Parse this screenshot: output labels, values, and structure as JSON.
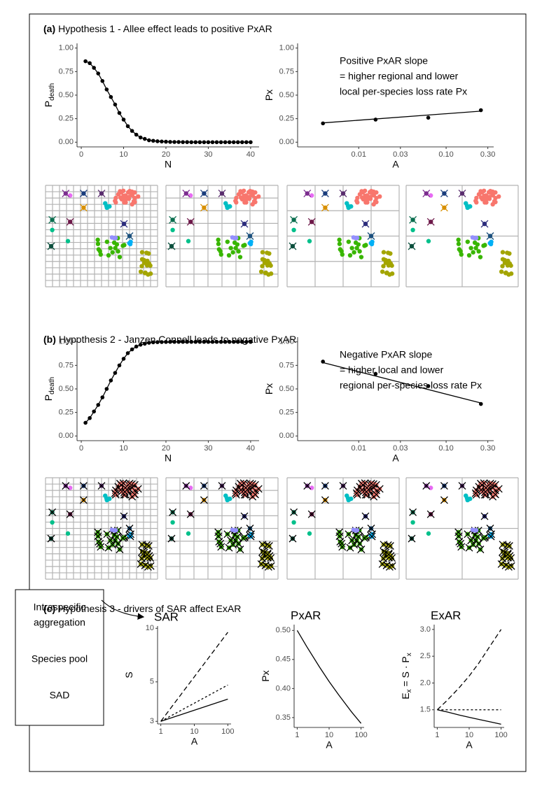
{
  "panel_titles": [
    {
      "label": "(a)",
      "text": "Hypothesis 1 - Allee effect leads to positive PxAR"
    },
    {
      "label": "(b)",
      "text": "Hypothesis 2 - Janzen Connell leads to negative PxAR"
    },
    {
      "label": "(c)",
      "text": "Hypothesis 3 - drivers of SAR affect ExAR"
    }
  ],
  "box_labels": [
    "Intraspecific",
    "aggregation",
    "Species pool",
    "SAD"
  ],
  "chart_data": [
    {
      "type": "line",
      "markers": true,
      "x_label": "N",
      "y_label": [
        {
          "text": "P"
        },
        {
          "text": "death",
          "sub": true
        }
      ],
      "x": [
        1,
        2,
        3,
        4,
        5,
        6,
        7,
        8,
        9,
        10,
        11,
        12,
        13,
        14,
        15,
        16,
        17,
        18,
        19,
        20,
        21,
        22,
        23,
        24,
        25,
        26,
        27,
        28,
        29,
        30,
        31,
        32,
        33,
        34,
        35,
        36,
        37,
        38,
        39,
        40
      ],
      "series": [
        {
          "color": "#000000",
          "values": [
            0.86,
            0.84,
            0.79,
            0.73,
            0.65,
            0.56,
            0.48,
            0.4,
            0.31,
            0.24,
            0.17,
            0.12,
            0.08,
            0.05,
            0.035,
            0.02,
            0.015,
            0.01,
            0.007,
            0.005,
            0.003,
            0.002,
            0.002,
            0.001,
            0.001,
            0,
            0,
            0,
            0,
            0,
            0,
            0,
            0,
            0,
            0,
            0,
            0,
            0,
            0,
            0
          ]
        }
      ],
      "xlim": [
        -1,
        42
      ],
      "xticks": [
        0,
        10,
        20,
        30,
        40
      ],
      "ylim": [
        -0.05,
        1.05
      ],
      "yticks": [
        {
          "value": 0,
          "label": "0.00"
        },
        {
          "value": 0.25,
          "label": "0.25"
        },
        {
          "value": 0.5,
          "label": "0.50"
        },
        {
          "value": 0.75,
          "label": "0.75"
        },
        {
          "value": 1,
          "label": "1.00"
        }
      ]
    },
    {
      "type": "scatter",
      "x_label": "A",
      "y_label": [
        {
          "text": "Px"
        }
      ],
      "x_log": true,
      "x": [
        0.0039,
        0.0156,
        0.0625,
        0.25
      ],
      "series": [
        {
          "color": "#000000",
          "values": [
            0.2,
            0.24,
            0.26,
            0.34
          ]
        }
      ],
      "trend": {
        "x": [
          0.0039,
          0.25
        ],
        "values": [
          0.205,
          0.33
        ]
      },
      "annotation": [
        "Positive PxAR slope",
        "= higher regional and lower",
        "local per-species loss rate Px"
      ],
      "xlim": [
        0.002,
        0.35
      ],
      "xticks": [
        0.01,
        0.03,
        {
          "value": 0.1,
          "label": "0.10"
        },
        {
          "value": 0.3,
          "label": "0.30"
        }
      ],
      "ylim": [
        -0.05,
        1.05
      ],
      "yticks": [
        {
          "value": 0,
          "label": "0.00"
        },
        {
          "value": 0.25,
          "label": "0.25"
        },
        {
          "value": 0.5,
          "label": "0.50"
        },
        {
          "value": 0.75,
          "label": "0.75"
        },
        {
          "value": 1,
          "label": "1.00"
        }
      ]
    },
    {
      "type": "line",
      "markers": true,
      "x_label": "N",
      "y_label": [
        {
          "text": "P"
        },
        {
          "text": "death",
          "sub": true
        }
      ],
      "x": [
        1,
        2,
        3,
        4,
        5,
        6,
        7,
        8,
        9,
        10,
        11,
        12,
        13,
        14,
        15,
        16,
        17,
        18,
        19,
        20,
        21,
        22,
        23,
        24,
        25,
        26,
        27,
        28,
        29,
        30,
        31,
        32,
        33,
        34,
        35,
        36,
        37,
        38,
        39,
        40
      ],
      "series": [
        {
          "color": "#000000",
          "values": [
            0.14,
            0.19,
            0.26,
            0.33,
            0.41,
            0.5,
            0.59,
            0.67,
            0.75,
            0.82,
            0.88,
            0.92,
            0.95,
            0.97,
            0.98,
            0.99,
            0.995,
            0.997,
            0.998,
            0.999,
            1,
            1,
            1,
            1,
            1,
            1,
            1,
            1,
            1,
            1,
            1,
            1,
            1,
            1,
            1,
            1,
            1,
            1,
            1,
            1
          ]
        }
      ],
      "xlim": [
        -1,
        42
      ],
      "xticks": [
        0,
        10,
        20,
        30,
        40
      ],
      "ylim": [
        -0.05,
        1.05
      ],
      "yticks": [
        {
          "value": 0,
          "label": "0.00"
        },
        {
          "value": 0.25,
          "label": "0.25"
        },
        {
          "value": 0.5,
          "label": "0.50"
        },
        {
          "value": 0.75,
          "label": "0.75"
        },
        {
          "value": 1,
          "label": "1.00"
        }
      ]
    },
    {
      "type": "scatter",
      "x_label": "A",
      "y_label": [
        {
          "text": "Px"
        }
      ],
      "x_log": true,
      "x": [
        0.0039,
        0.0156,
        0.0625,
        0.25
      ],
      "series": [
        {
          "color": "#000000",
          "values": [
            0.79,
            0.66,
            0.53,
            0.34
          ]
        }
      ],
      "trend": {
        "x": [
          0.0039,
          0.25
        ],
        "values": [
          0.78,
          0.35
        ]
      },
      "annotation": [
        "Negative PxAR slope",
        "= higher local and lower",
        "regional per-species loss rate Px"
      ],
      "xlim": [
        0.002,
        0.35
      ],
      "xticks": [
        0.01,
        0.03,
        {
          "value": 0.1,
          "label": "0.10"
        },
        {
          "value": 0.3,
          "label": "0.30"
        }
      ],
      "ylim": [
        -0.05,
        1.05
      ],
      "yticks": [
        {
          "value": 0,
          "label": "0.00"
        },
        {
          "value": 0.25,
          "label": "0.25"
        },
        {
          "value": 0.5,
          "label": "0.50"
        },
        {
          "value": 0.75,
          "label": "0.75"
        },
        {
          "value": 1,
          "label": "1.00"
        }
      ]
    },
    {
      "type": "line",
      "title": "SAR",
      "x_label": "A",
      "y_label": [
        {
          "text": "S"
        }
      ],
      "x_log": true,
      "y_log": true,
      "x": [
        1,
        100
      ],
      "series": [
        {
          "color": "#000000",
          "dash": "solid",
          "values": [
            3,
            4
          ]
        },
        {
          "color": "#000000",
          "dash": "dotted",
          "values": [
            3,
            4.8
          ]
        },
        {
          "color": "#000000",
          "dash": "dashed",
          "values": [
            3,
            9.5
          ]
        }
      ],
      "xlim": [
        0.8,
        125
      ],
      "xticks": [
        1,
        10,
        100
      ],
      "ylim": [
        2.9,
        10.3
      ],
      "yticks": [
        3,
        5,
        10
      ]
    },
    {
      "type": "line",
      "title": "PxAR",
      "x_label": "A",
      "y_label": [
        {
          "text": "Px"
        }
      ],
      "x_log": true,
      "x": [
        1,
        2,
        5,
        10,
        20,
        50,
        100
      ],
      "series": [
        {
          "color": "#000000",
          "dash": "solid",
          "values": [
            0.5,
            0.472,
            0.437,
            0.412,
            0.389,
            0.36,
            0.34
          ]
        }
      ],
      "xlim": [
        0.8,
        125
      ],
      "xticks": [
        1,
        10,
        100
      ],
      "ylim": [
        0.333,
        0.51
      ],
      "yticks": [
        0.35,
        {
          "value": 0.4,
          "label": "0.40"
        },
        0.45,
        {
          "value": 0.5,
          "label": "0.50"
        }
      ]
    },
    {
      "type": "line",
      "title": "ExAR",
      "x_label": "A",
      "x_log": true,
      "y_label": [
        {
          "text": "E"
        },
        {
          "text": "x",
          "sub": true
        },
        {
          "text": " = S · "
        },
        {
          "text": "P"
        },
        {
          "text": "x",
          "sub": true
        }
      ],
      "x": [
        1,
        2,
        5,
        10,
        20,
        50,
        100
      ],
      "series": [
        {
          "color": "#000000",
          "dash": "dashed",
          "values": [
            1.5,
            1.67,
            1.92,
            2.13,
            2.37,
            2.73,
            3.0
          ]
        },
        {
          "color": "#000000",
          "dash": "dotted",
          "values": [
            1.5,
            1.5,
            1.5,
            1.5,
            1.5,
            1.5,
            1.5
          ]
        },
        {
          "color": "#000000",
          "dash": "solid",
          "values": [
            1.5,
            1.46,
            1.4,
            1.36,
            1.32,
            1.27,
            1.23
          ]
        }
      ],
      "xlim": [
        0.8,
        125
      ],
      "xticks": [
        1,
        10,
        100
      ],
      "ylim": [
        1.17,
        3.09
      ],
      "yticks": [
        1.5,
        {
          "value": 2,
          "label": "2.0"
        },
        2.5,
        {
          "value": 3,
          "label": "3.0"
        }
      ]
    }
  ]
}
